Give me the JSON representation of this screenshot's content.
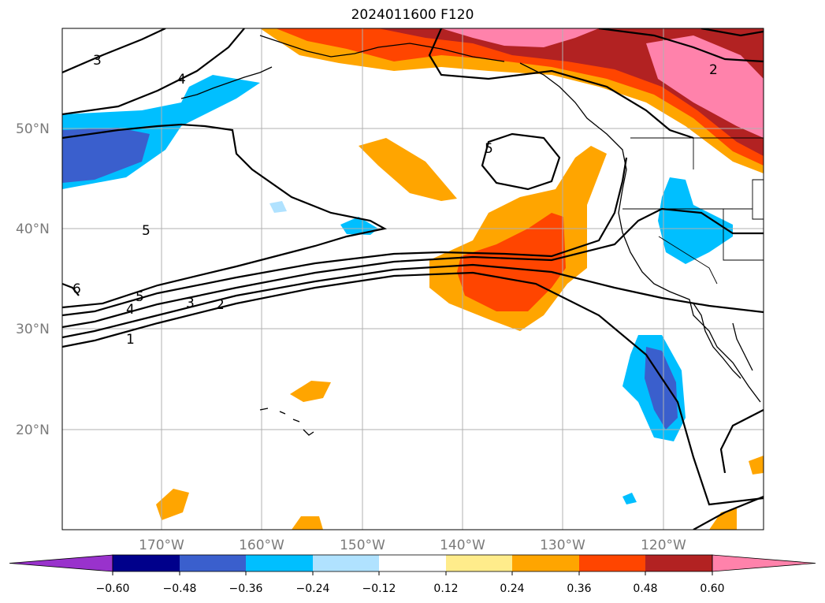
{
  "title": "2024011600 F120",
  "map": {
    "projection": "PlateCarree",
    "extent": {
      "lon_min": -180,
      "lon_max": -110,
      "lat_min": 10,
      "lat_max": 60
    },
    "lat_labels": [
      "50°N",
      "40°N",
      "30°N",
      "20°N"
    ],
    "lon_labels": [
      "170°W",
      "160°W",
      "150°W",
      "140°W",
      "130°W",
      "120°W"
    ],
    "contour_labels": [
      "5",
      "4",
      "3",
      "2",
      "1",
      "5",
      "4",
      "3",
      "5",
      "2",
      "6"
    ],
    "grid": true
  },
  "colorbar": {
    "orientation": "horizontal",
    "extend": "both",
    "tick_labels": [
      "−0.60",
      "−0.48",
      "−0.36",
      "−0.24",
      "−0.12",
      "0.12",
      "0.24",
      "0.36",
      "0.48",
      "0.60"
    ],
    "colors": [
      "#9932cc",
      "#00008b",
      "#3a5fcd",
      "#00bfff",
      "#b0e2ff",
      "#ffffff",
      "#ffec8b",
      "#ffa500",
      "#ff4500",
      "#b22222",
      "#ff82ab"
    ]
  }
}
